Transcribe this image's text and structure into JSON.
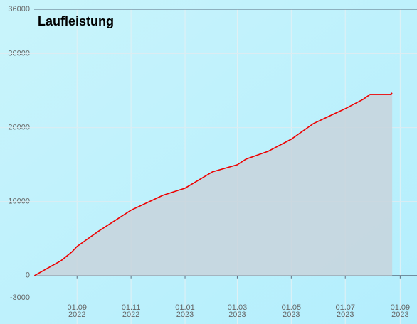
{
  "chart_data": {
    "type": "area",
    "title": "Laufleistung",
    "x": [
      "2022-07-15",
      "2022-08-14",
      "2022-08-26",
      "2022-09-01",
      "2022-09-26",
      "2022-11-01",
      "2022-12-07",
      "2023-01-01",
      "2023-02-01",
      "2023-03-01",
      "2023-03-11",
      "2023-04-05",
      "2023-05-01",
      "2023-05-26",
      "2023-06-19",
      "2023-07-01",
      "2023-07-21",
      "2023-07-29",
      "2023-08-21",
      "2023-08-23"
    ],
    "values": [
      0,
      2016,
      3168,
      3936,
      6048,
      8832,
      10848,
      11808,
      14016,
      14976,
      15744,
      16800,
      18432,
      20544,
      21888,
      22560,
      23808,
      24480,
      24480,
      24672
    ],
    "color": "#ee0000",
    "fill": "#c8d4dc",
    "xlim": [
      "2022-06-06",
      "2023-09-20"
    ],
    "xticks": [
      {
        "value": "2022-09-01",
        "label": "01.09 2022"
      },
      {
        "value": "2022-11-01",
        "label": "01.11 2022"
      },
      {
        "value": "2023-01-01",
        "label": "01.01 2023"
      },
      {
        "value": "2023-03-01",
        "label": "01.03 2023"
      },
      {
        "value": "2023-05-01",
        "label": "01.05 2023"
      },
      {
        "value": "2023-07-01",
        "label": "01.07 2023"
      },
      {
        "value": "2023-09-01",
        "label": "01.09 2023"
      }
    ],
    "ylim": [
      -3000,
      36000
    ],
    "yticks": [
      -3000,
      0,
      10000,
      20000,
      30000,
      36000
    ],
    "grid": true
  }
}
